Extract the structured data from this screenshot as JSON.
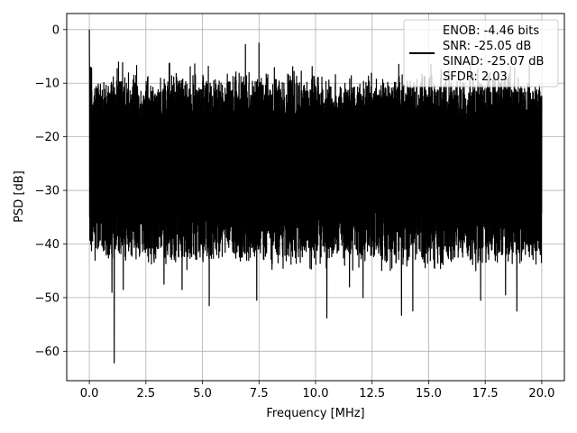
{
  "chart_data": {
    "type": "line",
    "xlabel": "Frequency [MHz]",
    "ylabel": "PSD [dB]",
    "xlim": [
      -1.0,
      21.0
    ],
    "ylim": [
      -65.5,
      3.0
    ],
    "xticks": [
      0.0,
      2.5,
      5.0,
      7.5,
      10.0,
      12.5,
      15.0,
      17.5,
      20.0
    ],
    "xtick_labels": [
      "0.0",
      "2.5",
      "5.0",
      "7.5",
      "10.0",
      "12.5",
      "15.0",
      "17.5",
      "20.0"
    ],
    "yticks": [
      0,
      -10,
      -20,
      -30,
      -40,
      -50,
      -60
    ],
    "ytick_labels": [
      "0",
      "−10",
      "−20",
      "−30",
      "−40",
      "−50",
      "−60"
    ],
    "grid": true,
    "legend_position": "top-right",
    "line_color": "#000000",
    "legend": [
      "ENOB: -4.46 bits",
      "SNR: -25.05 dB",
      "SINAD: -25.07 dB",
      "SFDR: 2.03"
    ],
    "series": [
      {
        "description": "Dense noisy PSD trace spanning 0 to 20 MHz, values mostly between -40 and -10 dB",
        "features": [
          {
            "x": 0.0,
            "y": 0.0
          },
          {
            "x": 0.05,
            "y": -7.0
          },
          {
            "x": 1.1,
            "y": -62.2
          },
          {
            "x": 1.0,
            "y": -49.0
          },
          {
            "x": 1.5,
            "y": -48.5
          },
          {
            "x": 3.3,
            "y": -47.5
          },
          {
            "x": 4.1,
            "y": -48.5
          },
          {
            "x": 5.3,
            "y": -51.5
          },
          {
            "x": 7.5,
            "y": -2.5
          },
          {
            "x": 7.4,
            "y": -50.5
          },
          {
            "x": 6.9,
            "y": -2.8
          },
          {
            "x": 10.5,
            "y": -53.8
          },
          {
            "x": 11.5,
            "y": -48.0
          },
          {
            "x": 12.1,
            "y": -50.0
          },
          {
            "x": 13.8,
            "y": -53.3
          },
          {
            "x": 14.3,
            "y": -52.5
          },
          {
            "x": 17.3,
            "y": -50.5
          },
          {
            "x": 18.4,
            "y": -49.5
          },
          {
            "x": 18.9,
            "y": -52.5
          }
        ],
        "band_high": -12.0,
        "band_low": -36.0
      }
    ]
  }
}
